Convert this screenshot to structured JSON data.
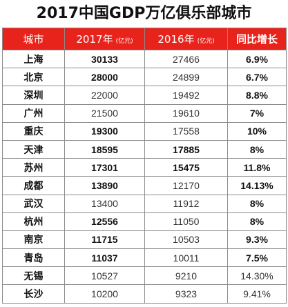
{
  "title": "2017中国GDP万亿俱乐部城市",
  "headers": {
    "city": "城市",
    "y2017": "2017年",
    "y2017_unit": "(亿元)",
    "y2016": "2016年",
    "y2016_unit": "(亿元)",
    "growth": "同比增长"
  },
  "rows": [
    {
      "city": "上海",
      "v2017": "30133",
      "v2016": "27466",
      "growth": "6.9%",
      "b2017": true,
      "b2016": false,
      "bgrowth": true
    },
    {
      "city": "北京",
      "v2017": "28000",
      "v2016": "24899",
      "growth": "6.7%",
      "b2017": true,
      "b2016": false,
      "bgrowth": true
    },
    {
      "city": "深圳",
      "v2017": "22000",
      "v2016": "19492",
      "growth": "8.8%",
      "b2017": false,
      "b2016": false,
      "bgrowth": true
    },
    {
      "city": "广州",
      "v2017": "21500",
      "v2016": "19610",
      "growth": "7%",
      "b2017": false,
      "b2016": false,
      "bgrowth": true
    },
    {
      "city": "重庆",
      "v2017": "19300",
      "v2016": "17558",
      "growth": "10%",
      "b2017": true,
      "b2016": false,
      "bgrowth": true
    },
    {
      "city": "天津",
      "v2017": "18595",
      "v2016": "17885",
      "growth": "8%",
      "b2017": true,
      "b2016": true,
      "bgrowth": true
    },
    {
      "city": "苏州",
      "v2017": "17301",
      "v2016": "15475",
      "growth": "11.8%",
      "b2017": true,
      "b2016": true,
      "bgrowth": true
    },
    {
      "city": "成都",
      "v2017": "13890",
      "v2016": "12170",
      "growth": "14.13%",
      "b2017": true,
      "b2016": false,
      "bgrowth": true
    },
    {
      "city": "武汉",
      "v2017": "13400",
      "v2016": "11912",
      "growth": "8%",
      "b2017": false,
      "b2016": false,
      "bgrowth": true
    },
    {
      "city": "杭州",
      "v2017": "12556",
      "v2016": "11050",
      "growth": "8%",
      "b2017": true,
      "b2016": false,
      "bgrowth": true
    },
    {
      "city": "南京",
      "v2017": "11715",
      "v2016": "10503",
      "growth": "9.3%",
      "b2017": true,
      "b2016": false,
      "bgrowth": true
    },
    {
      "city": "青岛",
      "v2017": "11037",
      "v2016": "10011",
      "growth": "7.5%",
      "b2017": true,
      "b2016": false,
      "bgrowth": true
    },
    {
      "city": "无锡",
      "v2017": "10527",
      "v2016": "9210",
      "growth": "14.30%",
      "b2017": false,
      "b2016": false,
      "bgrowth": false
    },
    {
      "city": "长沙",
      "v2017": "10200",
      "v2016": "9323",
      "growth": "9.41%",
      "b2017": false,
      "b2016": false,
      "bgrowth": false
    }
  ],
  "colors": {
    "header_bg": "#e8231b",
    "header_text": "#ffffff",
    "border": "#8a8a8a"
  }
}
